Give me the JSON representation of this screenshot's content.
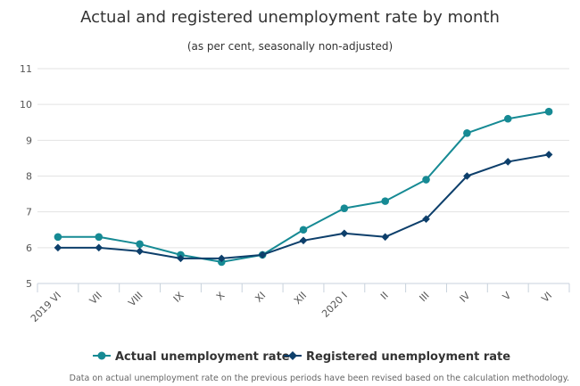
{
  "chart_data": {
    "type": "line",
    "title": "Actual and registered unemployment rate by month",
    "subtitle": "(as per cent, seasonally non-adjusted)",
    "categories": [
      "2019 VI",
      "VII",
      "VIII",
      "IX",
      "X",
      "XI",
      "XII",
      "2020 I",
      "II",
      "III",
      "IV",
      "V",
      "VI"
    ],
    "ylim": [
      5,
      11
    ],
    "yticks": [
      5,
      6,
      7,
      8,
      9,
      10,
      11
    ],
    "grid": true,
    "legend_position": "bottom",
    "series": [
      {
        "name": "Actual unemployment rate",
        "marker": "circle",
        "color": "#168a94",
        "values": [
          6.3,
          6.3,
          6.1,
          5.8,
          5.6,
          5.8,
          6.5,
          7.1,
          7.3,
          7.9,
          9.2,
          9.6,
          9.8
        ]
      },
      {
        "name": "Registered unemployment rate",
        "marker": "diamond",
        "color": "#0d3f6b",
        "values": [
          6.0,
          6.0,
          5.9,
          5.7,
          5.7,
          5.8,
          6.2,
          6.4,
          6.3,
          6.8,
          8.0,
          8.4,
          8.6
        ]
      }
    ],
    "footnote": "Data on actual unemployment rate on the previous periods have been revised based on the calculation methodology."
  }
}
